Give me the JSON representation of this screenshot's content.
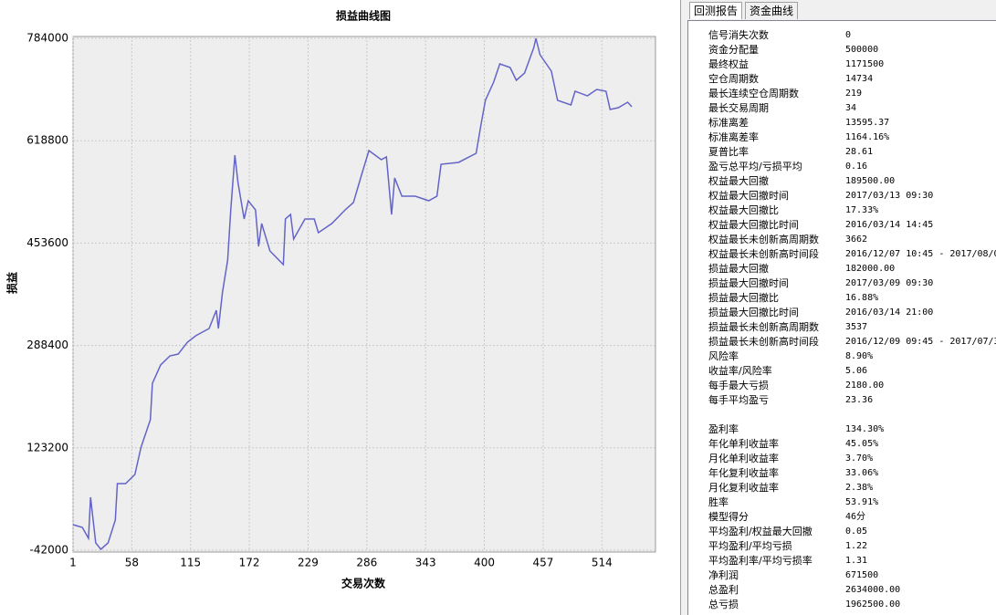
{
  "chart_data": {
    "type": "line",
    "title": "损益曲线图",
    "x_label": "交易次数",
    "y_label": "损益",
    "x": [
      1,
      10,
      16,
      18,
      23,
      28,
      35,
      42,
      44,
      52,
      61,
      67,
      76,
      78,
      86,
      95,
      103,
      112,
      120,
      133,
      140,
      142,
      146,
      151,
      154,
      158,
      161,
      167,
      171,
      178,
      181,
      184,
      192,
      205,
      207,
      212,
      215,
      226,
      235,
      239,
      252,
      265,
      273,
      280,
      288,
      300,
      305,
      310,
      313,
      320,
      333,
      346,
      354,
      358,
      375,
      392,
      397,
      401,
      409,
      415,
      425,
      431,
      439,
      448,
      450,
      454,
      465,
      471,
      484,
      488,
      500,
      509,
      518,
      522,
      530,
      539,
      543
    ],
    "series": [
      {
        "name": "损益",
        "color": "#6464c8",
        "values": [
          -800,
          -5200,
          -22900,
          43400,
          -30200,
          -40500,
          -30200,
          6600,
          65500,
          65500,
          80200,
          124400,
          168500,
          227400,
          256900,
          271600,
          274500,
          293700,
          304000,
          315800,
          345200,
          315800,
          374700,
          426200,
          507200,
          595500,
          551400,
          492500,
          521900,
          507200,
          448300,
          485100,
          440900,
          418800,
          492500,
          499800,
          460100,
          492500,
          492500,
          470400,
          485100,
          507200,
          519000,
          558700,
          602900,
          588200,
          592600,
          499800,
          558700,
          529300,
          529300,
          521900,
          529300,
          580800,
          583800,
          598500,
          647100,
          683900,
          713300,
          742800,
          736900,
          716300,
          728000,
          769300,
          784000,
          757500,
          731000,
          683900,
          676500,
          698600,
          691200,
          701500,
          698600,
          669200,
          672100,
          680900,
          673600
        ]
      }
    ],
    "xlim": [
      1,
      566
    ],
    "ylim": [
      -42000,
      784000
    ],
    "xticks": [
      1,
      58,
      115,
      172,
      229,
      286,
      343,
      400,
      457,
      514
    ],
    "yticks": [
      -42000,
      123200,
      288400,
      453600,
      618800,
      784000
    ],
    "grid": true
  },
  "tabs": [
    "回测报告",
    "资金曲线"
  ],
  "report": {
    "sections": [
      [
        [
          "信号消失次数",
          "0"
        ],
        [
          "资金分配量",
          "500000"
        ],
        [
          "最终权益",
          "1171500"
        ],
        [
          "空仓周期数",
          "14734"
        ],
        [
          "最长连续空仓周期数",
          "219"
        ],
        [
          "最长交易周期",
          "34"
        ],
        [
          "标准离差",
          "13595.37"
        ],
        [
          "标准离差率",
          "1164.16%"
        ],
        [
          "夏普比率",
          "28.61"
        ],
        [
          "盈亏总平均/亏损平均",
          "0.16"
        ],
        [
          "权益最大回撤",
          "189500.00"
        ],
        [
          "权益最大回撤时间",
          "2017/03/13 09:30"
        ],
        [
          "权益最大回撤比",
          "17.33%"
        ],
        [
          "权益最大回撤比时间",
          "2016/03/14 14:45"
        ],
        [
          "权益最长未创新高周期数",
          "3662"
        ],
        [
          "权益最长未创新高时间段",
          "2016/12/07 10:45 - 2017/08/0"
        ],
        [
          "损益最大回撤",
          "182000.00"
        ],
        [
          "损益最大回撤时间",
          "2017/03/09 09:30"
        ],
        [
          "损益最大回撤比",
          "16.88%"
        ],
        [
          "损益最大回撤比时间",
          "2016/03/14 21:00"
        ],
        [
          "损益最长未创新高周期数",
          "3537"
        ],
        [
          "损益最长未创新高时间段",
          "2016/12/09 09:45 - 2017/07/3"
        ],
        [
          "风险率",
          "8.90%"
        ],
        [
          "收益率/风险率",
          "5.06"
        ],
        [
          "每手最大亏损",
          "2180.00"
        ],
        [
          "每手平均盈亏",
          "23.36"
        ]
      ],
      [
        [
          "盈利率",
          "134.30%"
        ],
        [
          "年化单利收益率",
          "45.05%"
        ],
        [
          "月化单利收益率",
          "3.70%"
        ],
        [
          "年化复利收益率",
          "33.06%"
        ],
        [
          "月化复利收益率",
          "2.38%"
        ],
        [
          "胜率",
          "53.91%"
        ],
        [
          "模型得分",
          "46分"
        ],
        [
          "平均盈利/权益最大回撤",
          "0.05"
        ],
        [
          "平均盈利/平均亏损",
          "1.22"
        ],
        [
          "平均盈利率/平均亏损率",
          "1.31"
        ],
        [
          "净利润",
          "671500"
        ],
        [
          "总盈利",
          "2634000.00"
        ],
        [
          "总亏损",
          "1962500.00"
        ]
      ]
    ]
  }
}
